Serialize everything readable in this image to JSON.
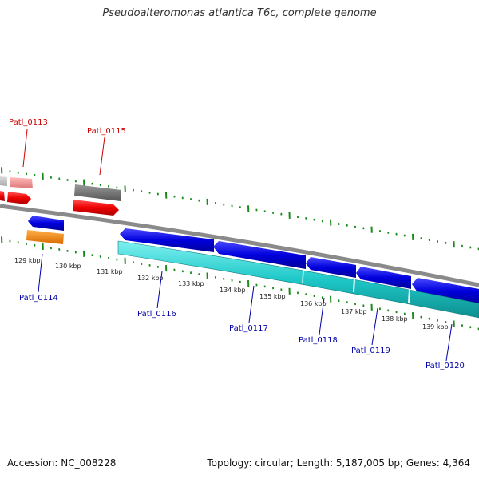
{
  "title": "Pseudoalteromonas atlantica T6c, complete genome",
  "footer": {
    "accession": "Accession: NC_008228",
    "topology": "Topology: circular; Length: 5,187,005 bp; Genes: 4,364"
  },
  "colors": {
    "backbone": "#888888",
    "forward_blue": "#0000dd",
    "reverse_cyan": "#1ec8c8",
    "red": "#ee0000",
    "pink": "#ee8888",
    "gray": "#666666",
    "orange": "#ff8800",
    "tick_green": "#1a8a1a",
    "label_red": "#cc0000",
    "label_blue": "#0000aa"
  },
  "scale_labels": [
    "129 kbp",
    "130 kbp",
    "131 kbp",
    "132 kbp",
    "133 kbp",
    "134 kbp",
    "135 kbp",
    "136 kbp",
    "137 kbp",
    "138 kbp",
    "139 kbp"
  ],
  "gene_labels": {
    "top": [
      "Patl_0113",
      "Patl_0115"
    ],
    "bottom": [
      "Patl_0114",
      "Patl_0116",
      "Patl_0117",
      "Patl_0118",
      "Patl_0119",
      "Patl_0120"
    ]
  }
}
